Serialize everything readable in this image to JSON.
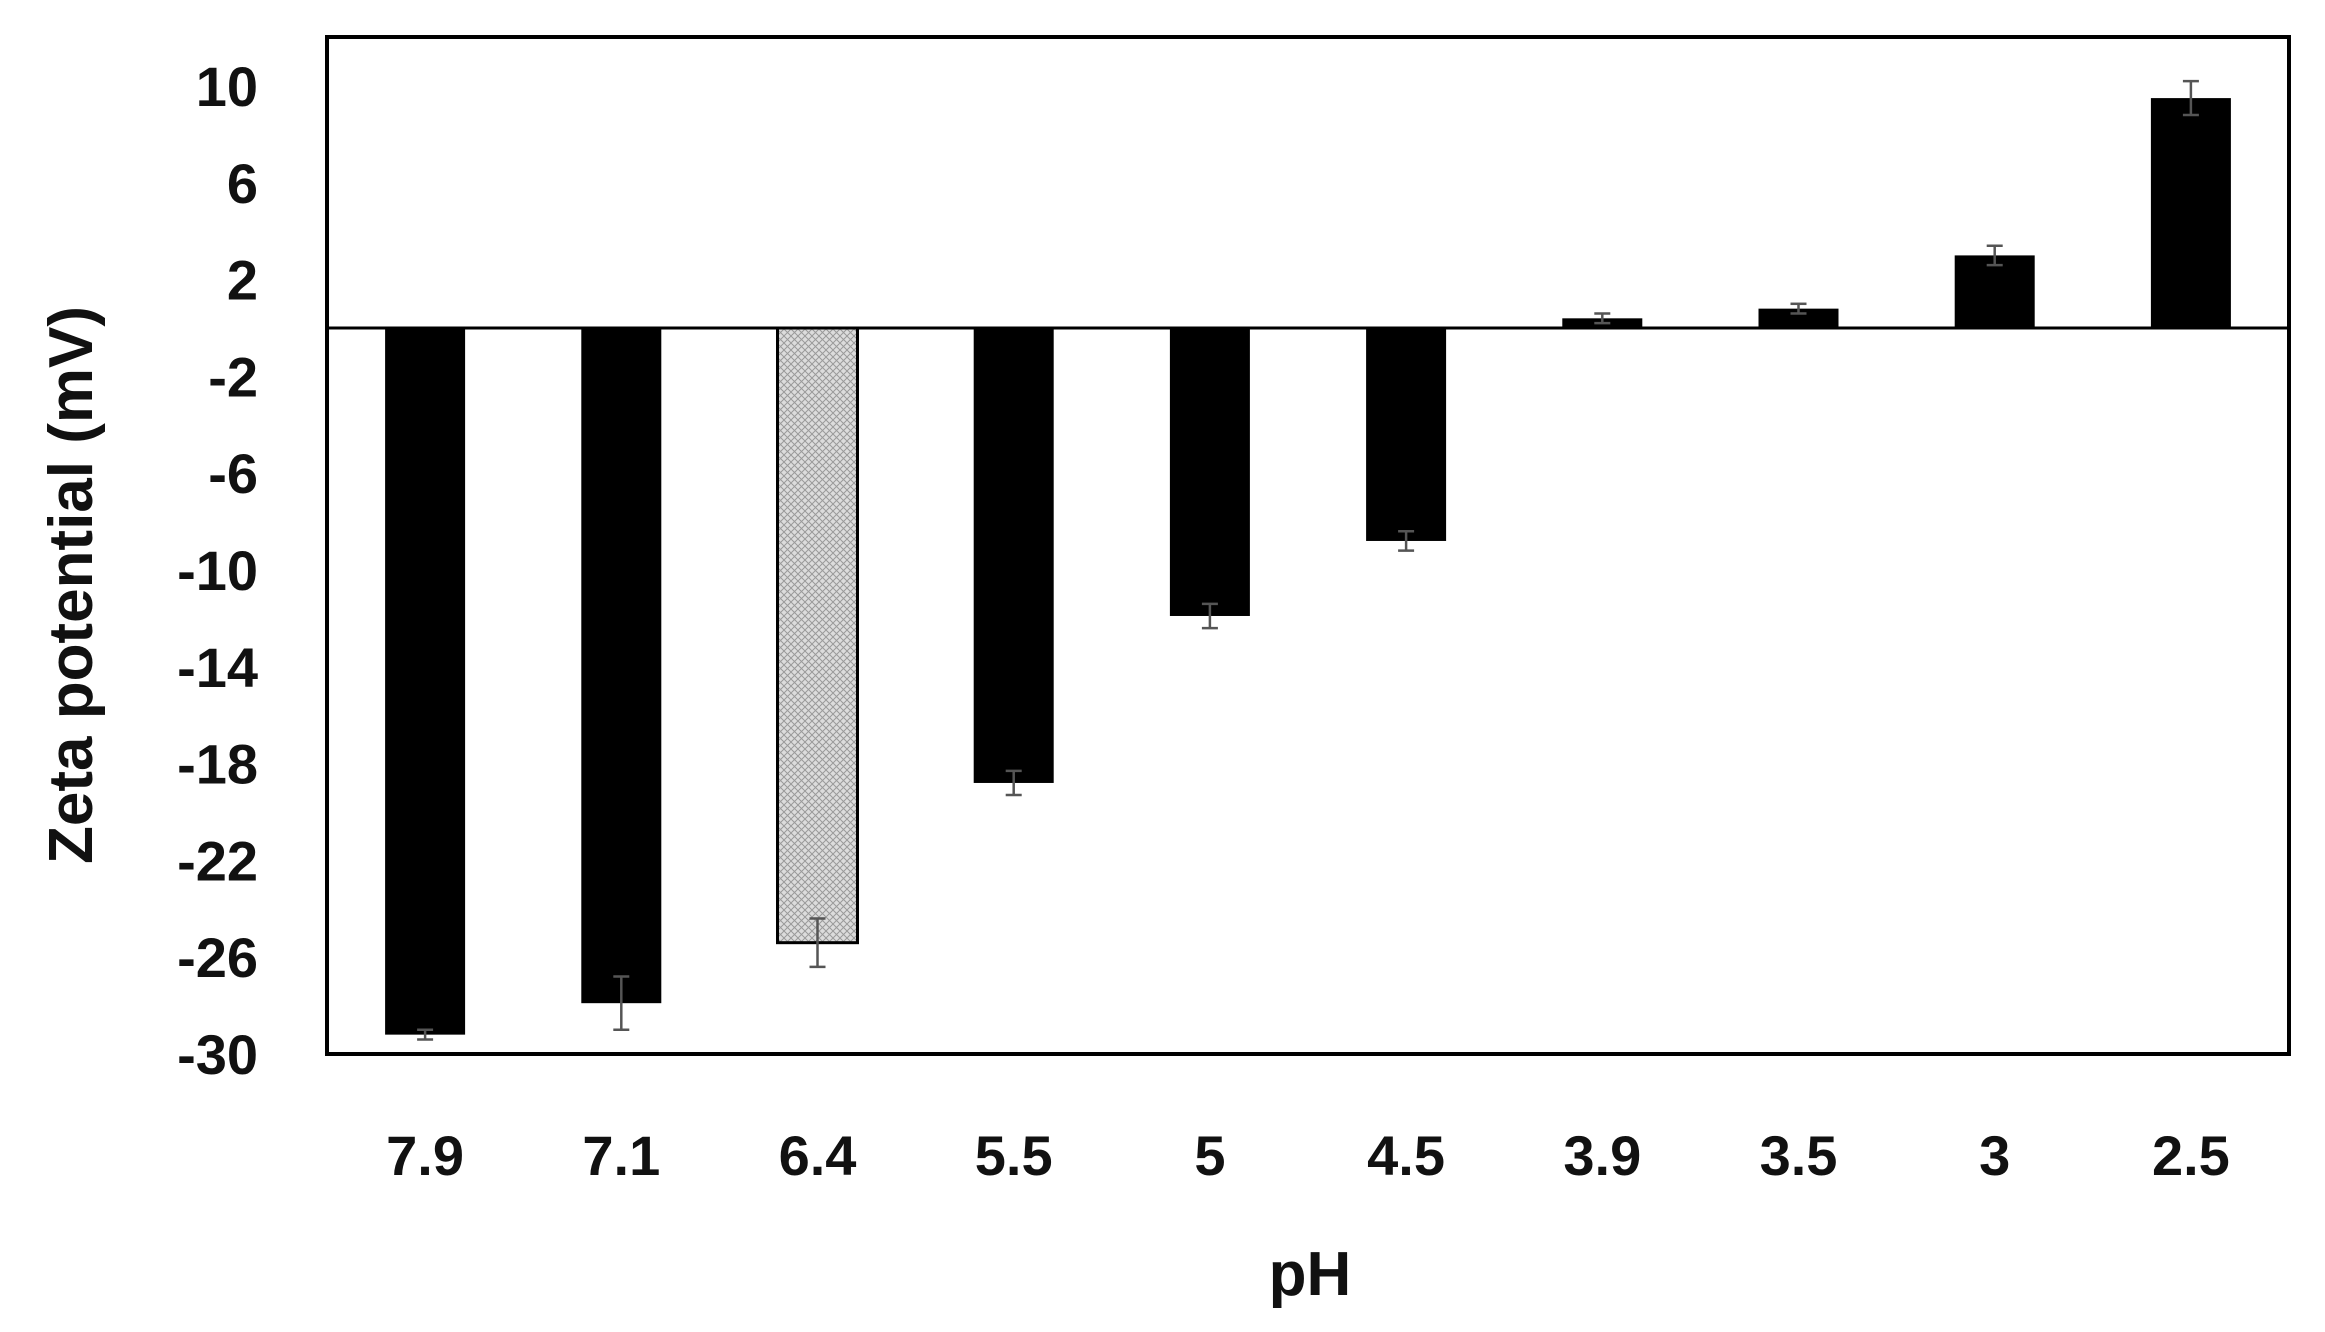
{
  "chart_data": {
    "type": "bar",
    "title": "",
    "xlabel": "pH",
    "ylabel": "Zeta potential (mV)",
    "categories": [
      "7.9",
      "7.1",
      "6.4",
      "5.5",
      "5",
      "4.5",
      "3.9",
      "3.5",
      "3",
      "2.5"
    ],
    "values": [
      -29.2,
      -27.9,
      -25.4,
      -18.8,
      -11.9,
      -8.8,
      0.4,
      0.8,
      3.0,
      9.5
    ],
    "errors": [
      0.2,
      1.1,
      1.0,
      0.5,
      0.5,
      0.4,
      0.2,
      0.2,
      0.4,
      0.7
    ],
    "highlighted_category": "6.4",
    "ylim": [
      -30,
      13.3
    ],
    "yticks": [
      10,
      6,
      2,
      -2,
      -6,
      -10,
      -14,
      -18,
      -22,
      -26,
      -30
    ],
    "ytick_labels": [
      "10",
      "6",
      "2",
      "-2",
      "-6",
      "-10",
      "-14",
      "-18",
      "-22",
      "-26",
      "-30"
    ],
    "grid": false,
    "legend": null,
    "colors": {
      "bar": "#000000",
      "highlight_fill": "#dcdcdc",
      "highlight_hatch": "#9a9a9a",
      "error_bar": "#555555",
      "axis": "#000000"
    }
  }
}
